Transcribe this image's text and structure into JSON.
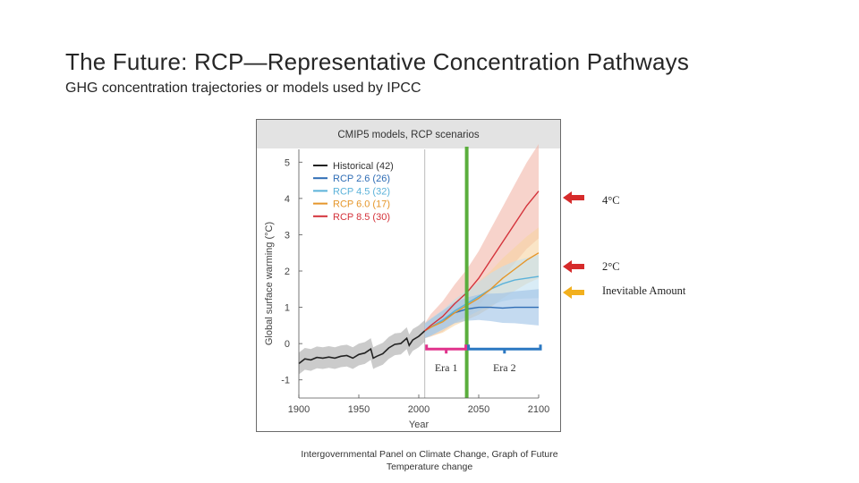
{
  "slide": {
    "title": "The Future:  RCP—Representative Concentration Pathways",
    "subtitle": "GHG concentration trajectories or models used by IPCC",
    "caption_line1": "Intergovernmental Panel on Climate Change, Graph of Future",
    "caption_line2": "Temperature change"
  },
  "annotations": [
    {
      "label": "4°C",
      "color": "#d62b2b"
    },
    {
      "label": "2°C",
      "color": "#d62b2b"
    },
    {
      "label": "Inevitable Amount",
      "color": "#f2b01e"
    }
  ],
  "chart_data": {
    "type": "line",
    "title": "CMIP5 models, RCP scenarios",
    "xlabel": "Year",
    "ylabel": "Global surface warming (°C)",
    "xlim": [
      1900,
      2100
    ],
    "ylim": [
      -1.5,
      5.5
    ],
    "xticks": [
      1900,
      1950,
      2000,
      2050,
      2100
    ],
    "yticks": [
      -1,
      0,
      1,
      2,
      3,
      4,
      5
    ],
    "legend_position": "top-left",
    "grid": false,
    "vertical_reference_lines": [
      {
        "x": 2005,
        "color": "#bbbbbb"
      },
      {
        "x": 2040,
        "color": "#5aae3c"
      }
    ],
    "eras": [
      {
        "label": "Era 1",
        "from": 2005,
        "to": 2040,
        "color": "#e0338c"
      },
      {
        "label": "Era 2",
        "from": 2040,
        "to": 2100,
        "color": "#2b78c2"
      }
    ],
    "series": [
      {
        "name": "Historical (42)",
        "color": "#222222",
        "band": "#a9a9a9",
        "x": [
          1900,
          1905,
          1910,
          1915,
          1920,
          1925,
          1930,
          1935,
          1940,
          1945,
          1950,
          1955,
          1960,
          1962,
          1965,
          1970,
          1975,
          1980,
          1985,
          1990,
          1992,
          1995,
          2000,
          2005
        ],
        "y": [
          -0.55,
          -0.42,
          -0.45,
          -0.38,
          -0.4,
          -0.37,
          -0.4,
          -0.35,
          -0.33,
          -0.4,
          -0.3,
          -0.26,
          -0.15,
          -0.4,
          -0.35,
          -0.28,
          -0.12,
          -0.02,
          0.0,
          0.15,
          -0.05,
          0.1,
          0.2,
          0.35
        ],
        "spread": 0.3
      },
      {
        "name": "RCP 2.6 (26)",
        "color": "#2f6db5",
        "band": "#9cc1e6",
        "x": [
          2005,
          2010,
          2020,
          2030,
          2040,
          2050,
          2060,
          2070,
          2080,
          2090,
          2100
        ],
        "y": [
          0.35,
          0.45,
          0.65,
          0.85,
          0.95,
          1.0,
          1.0,
          0.98,
          1.0,
          1.0,
          1.0
        ],
        "spread_start": 0.2,
        "spread_end": 0.5
      },
      {
        "name": "RCP 4.5 (32)",
        "color": "#5bb2d9",
        "band": "#bfe0f0",
        "x": [
          2005,
          2010,
          2020,
          2030,
          2040,
          2050,
          2060,
          2070,
          2080,
          2090,
          2100
        ],
        "y": [
          0.35,
          0.45,
          0.65,
          0.9,
          1.1,
          1.3,
          1.5,
          1.65,
          1.75,
          1.8,
          1.85
        ],
        "spread_start": 0.2,
        "spread_end": 0.6
      },
      {
        "name": "RCP 6.0 (17)",
        "color": "#e5962a",
        "band": "#f6d4a1",
        "x": [
          2005,
          2010,
          2020,
          2030,
          2040,
          2050,
          2060,
          2070,
          2080,
          2090,
          2100
        ],
        "y": [
          0.35,
          0.45,
          0.6,
          0.85,
          1.05,
          1.25,
          1.5,
          1.8,
          2.05,
          2.3,
          2.5
        ],
        "spread_start": 0.2,
        "spread_end": 0.7
      },
      {
        "name": "RCP 8.5 (30)",
        "color": "#d4333b",
        "band": "#f1b6a8",
        "x": [
          2005,
          2010,
          2020,
          2030,
          2040,
          2050,
          2060,
          2070,
          2080,
          2090,
          2100
        ],
        "y": [
          0.35,
          0.5,
          0.75,
          1.1,
          1.4,
          1.8,
          2.3,
          2.8,
          3.3,
          3.8,
          4.2
        ],
        "spread_start": 0.2,
        "spread_end": 1.3
      }
    ]
  }
}
